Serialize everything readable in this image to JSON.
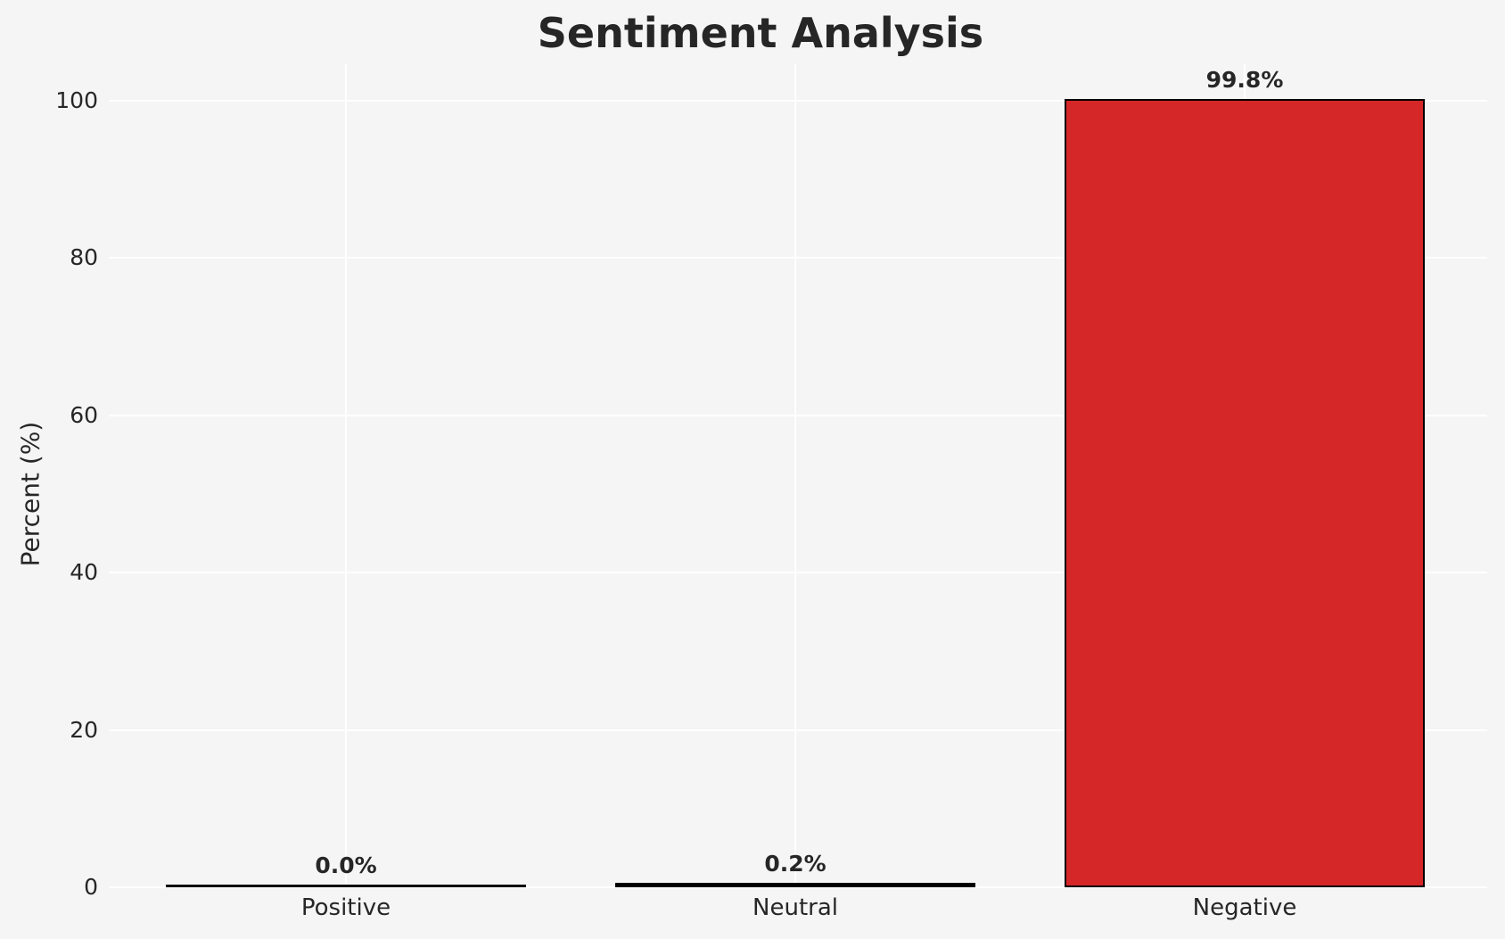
{
  "chart_data": {
    "type": "bar",
    "title": "Sentiment Analysis",
    "xlabel": "",
    "ylabel": "Percent (%)",
    "categories": [
      "Positive",
      "Neutral",
      "Negative"
    ],
    "values": [
      0.0,
      0.2,
      99.8
    ],
    "value_labels": [
      "0.0%",
      "0.2%",
      "99.8%"
    ],
    "bar_colors": [
      "#f5f5f5",
      "#f5f5f5",
      "#d62728"
    ],
    "bar_edge_color": "#000000",
    "yticks": [
      0,
      20,
      40,
      60,
      80,
      100
    ],
    "ylim": [
      0,
      104.6
    ],
    "grid": true,
    "gridline_color": "#ffffff",
    "background_color": "#f5f5f5",
    "text_color": "#262626",
    "legend": "none"
  }
}
